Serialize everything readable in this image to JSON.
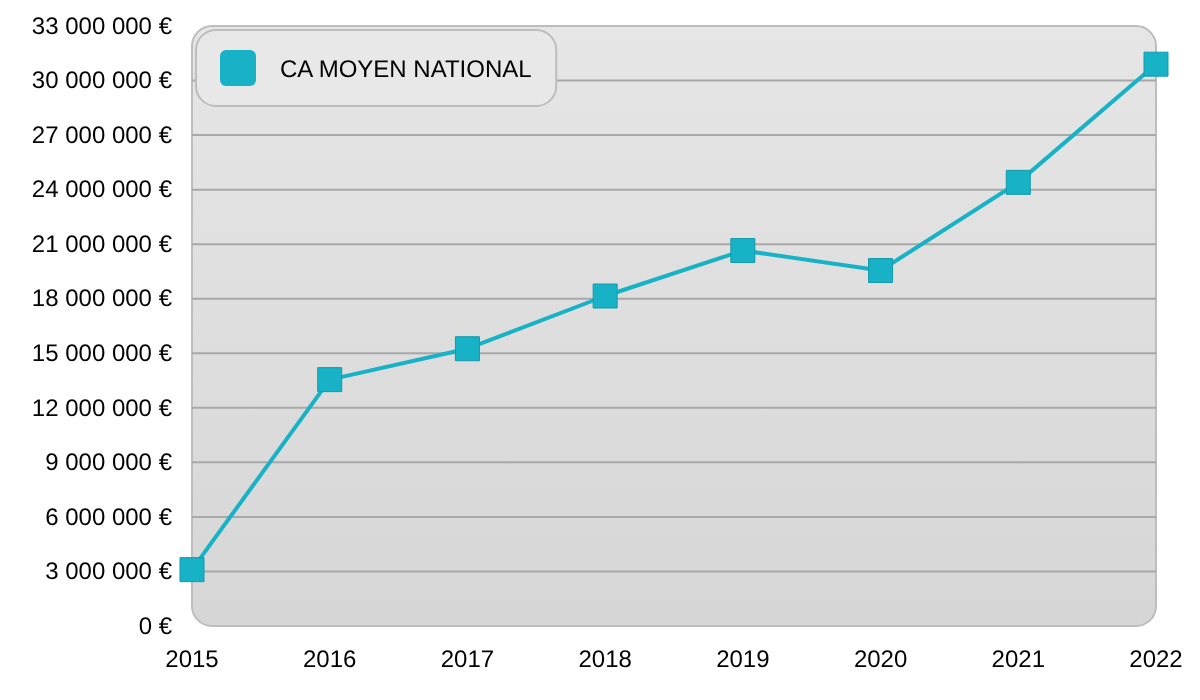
{
  "chart_data": {
    "type": "line",
    "categories": [
      "2015",
      "2016",
      "2017",
      "2018",
      "2019",
      "2020",
      "2021",
      "2022"
    ],
    "series": [
      {
        "name": "CA MOYEN NATIONAL",
        "color": "#17b2c6",
        "values": [
          3100000,
          13550000,
          15250000,
          18150000,
          20650000,
          19550000,
          24400000,
          30900000
        ]
      }
    ],
    "ylim": [
      0,
      33000000
    ],
    "yticks": [
      {
        "value": 0,
        "label": "0 €"
      },
      {
        "value": 3000000,
        "label": "3 000 000 €"
      },
      {
        "value": 6000000,
        "label": "6 000 000 €"
      },
      {
        "value": 9000000,
        "label": "9 000 000 €"
      },
      {
        "value": 12000000,
        "label": "12 000 000 €"
      },
      {
        "value": 15000000,
        "label": "15 000 000 €"
      },
      {
        "value": 18000000,
        "label": "18 000 000 €"
      },
      {
        "value": 21000000,
        "label": "21 000 000 €"
      },
      {
        "value": 24000000,
        "label": "24 000 000 €"
      },
      {
        "value": 27000000,
        "label": "27 000 000 €"
      },
      {
        "value": 30000000,
        "label": "30 000 000 €"
      },
      {
        "value": 33000000,
        "label": "33 000 000 €"
      }
    ],
    "grid": "y",
    "legend": "top left",
    "marker": "square",
    "line_style": "solid"
  }
}
